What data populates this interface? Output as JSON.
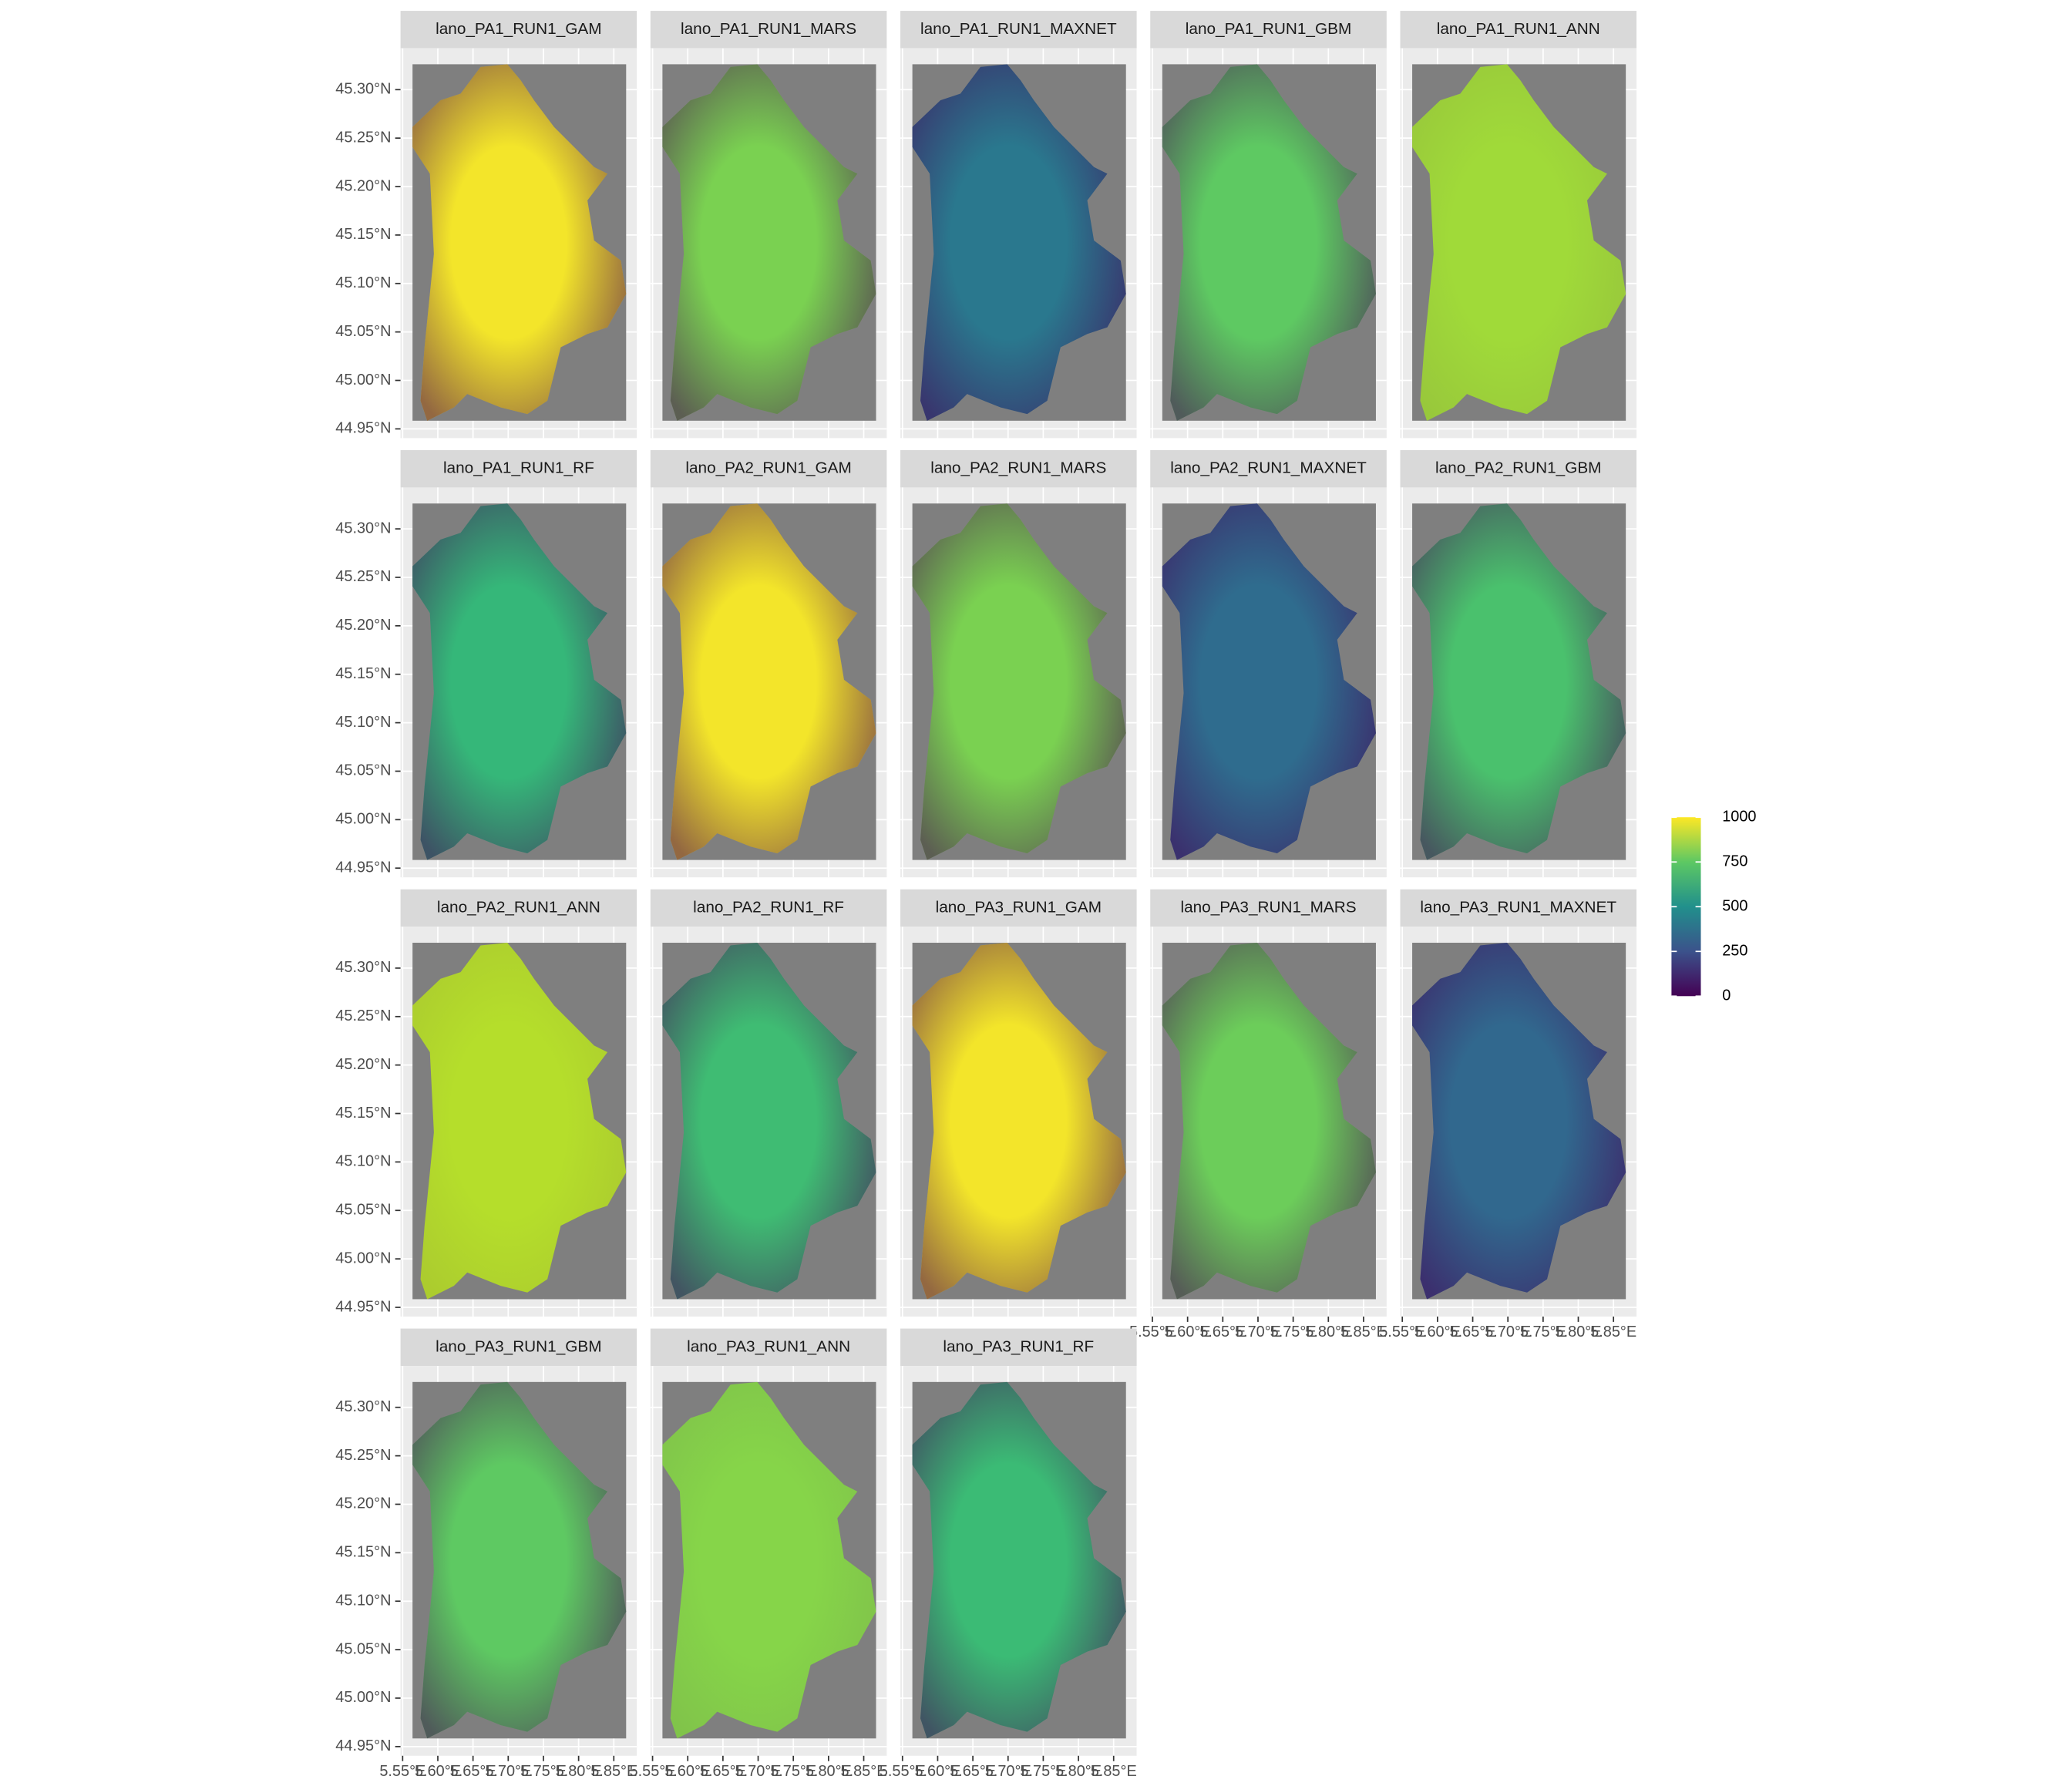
{
  "chart_data": {
    "type": "raster",
    "xlim": [
      5.547,
      5.8827
    ],
    "ylim": [
      44.9405,
      45.3427
    ],
    "xticks": [
      {
        "value": 5.55,
        "label": "5.55°E"
      },
      {
        "value": 5.6,
        "label": "5.60°E"
      },
      {
        "value": 5.65,
        "label": "5.65°E"
      },
      {
        "value": 5.7,
        "label": "5.70°E"
      },
      {
        "value": 5.75,
        "label": "5.75°E"
      },
      {
        "value": 5.8,
        "label": "5.80°E"
      },
      {
        "value": 5.85,
        "label": "5.85°E"
      }
    ],
    "yticks": [
      {
        "value": 44.95,
        "label": "44.95°N"
      },
      {
        "value": 45.0,
        "label": "45.00°N"
      },
      {
        "value": 45.05,
        "label": "45.05°N"
      },
      {
        "value": 45.1,
        "label": "45.10°N"
      },
      {
        "value": 45.15,
        "label": "45.15°N"
      },
      {
        "value": 45.2,
        "label": "45.20°N"
      },
      {
        "value": 45.25,
        "label": "45.25°N"
      },
      {
        "value": 45.3,
        "label": "45.30°N"
      }
    ],
    "facets": [
      {
        "title": "lano_PA1_RUN1_GAM",
        "color": "#f3e52a"
      },
      {
        "title": "lano_PA1_RUN1_MARS",
        "color": "#7ad151"
      },
      {
        "title": "lano_PA1_RUN1_MAXNET",
        "color": "#2a788e"
      },
      {
        "title": "lano_PA1_RUN1_GBM",
        "color": "#5ec962"
      },
      {
        "title": "lano_PA1_RUN1_ANN",
        "color": "#a0da39"
      },
      {
        "title": "lano_PA1_RUN1_RF",
        "color": "#35b779"
      },
      {
        "title": "lano_PA2_RUN1_GAM",
        "color": "#f3e52a"
      },
      {
        "title": "lano_PA2_RUN1_MARS",
        "color": "#7ad151"
      },
      {
        "title": "lano_PA2_RUN1_MAXNET",
        "color": "#2f6c8e"
      },
      {
        "title": "lano_PA2_RUN1_GBM",
        "color": "#4ac16d"
      },
      {
        "title": "lano_PA2_RUN1_ANN",
        "color": "#b5de2b"
      },
      {
        "title": "lano_PA2_RUN1_RF",
        "color": "#3fbc73"
      },
      {
        "title": "lano_PA3_RUN1_GAM",
        "color": "#f3e52a"
      },
      {
        "title": "lano_PA3_RUN1_MARS",
        "color": "#6ccd5a"
      },
      {
        "title": "lano_PA3_RUN1_MAXNET",
        "color": "#31688e"
      },
      {
        "title": "lano_PA3_RUN1_GBM",
        "color": "#5ec962"
      },
      {
        "title": "lano_PA3_RUN1_ANN",
        "color": "#86d549"
      },
      {
        "title": "lano_PA3_RUN1_RF",
        "color": "#3bbb75"
      }
    ],
    "colorbar": {
      "lim": [
        0,
        1000
      ],
      "ticks": [
        0,
        250,
        500,
        750,
        1000
      ]
    }
  }
}
